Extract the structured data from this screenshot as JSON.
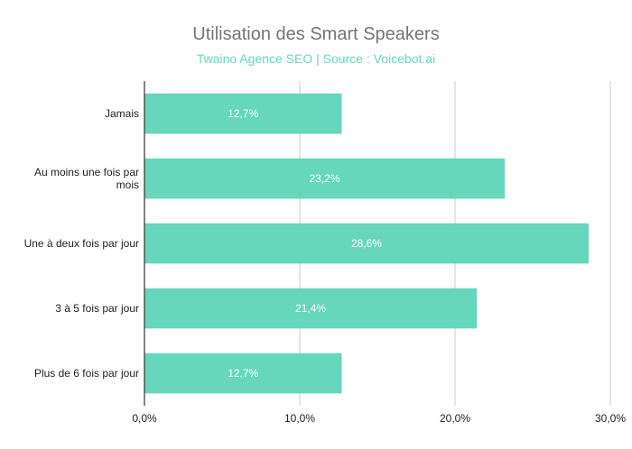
{
  "chart_data": {
    "type": "bar",
    "orientation": "horizontal",
    "title": "Utilisation des Smart Speakers",
    "subtitle": "Twaino Agence SEO | Source : Voicebot.ai",
    "categories": [
      "Jamais",
      "Au moins une fois par mois",
      "Une à deux fois par jour",
      "3 à 5 fois par jour",
      "Plus de 6 fois par jour"
    ],
    "category_lines": [
      [
        "Jamais"
      ],
      [
        "Au moins une fois par",
        "mois"
      ],
      [
        "Une à deux fois par jour"
      ],
      [
        "3 à 5 fois par jour"
      ],
      [
        "Plus de 6 fois par jour"
      ]
    ],
    "values": [
      12.7,
      23.2,
      28.6,
      21.4,
      12.7
    ],
    "data_labels": [
      "12,7%",
      "23,2%",
      "28,6%",
      "21,4%",
      "12,7%"
    ],
    "xlim": [
      0,
      30
    ],
    "xticks": [
      0,
      10,
      20,
      30
    ],
    "xtick_labels": [
      "0,0%",
      "10,0%",
      "20,0%",
      "30,0%"
    ],
    "grid": true,
    "colors": {
      "bar": "#66d6bd",
      "subtitle": "#66d6bd",
      "title": "#757575",
      "grid": "#cccccc",
      "axis": "#333333"
    }
  }
}
